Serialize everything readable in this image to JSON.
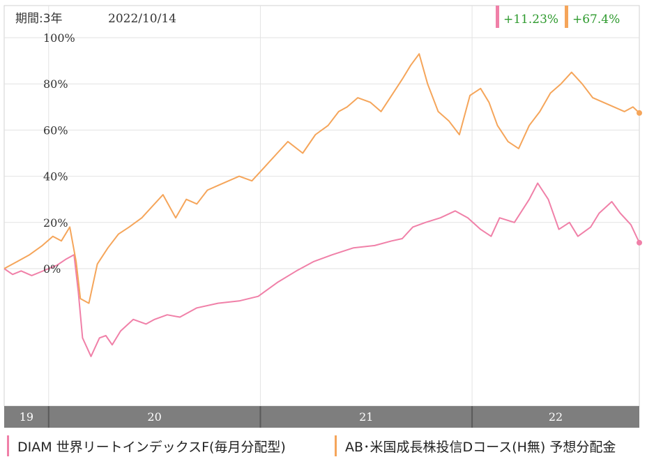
{
  "header": {
    "period_label": "期間:3年",
    "date_label": "2022/10/14"
  },
  "legend": [
    {
      "name": "DIAM 世界リートインデックスF(毎月分配型)",
      "color": "#f080a8",
      "change": "+11.23%"
    },
    {
      "name": "AB･米国成長株投信Dコース(H無) 予想分配金",
      "color": "#f5a55a",
      "change": "+67.4%"
    }
  ],
  "colors": {
    "change_text": "#2e9a2e",
    "grid": "#e2e2e2",
    "axis_band": "#7e7e7e",
    "axis_text": "#ffffff"
  },
  "chart_data": {
    "type": "line",
    "x_unit": "year",
    "xlim": [
      2019.79,
      2022.79
    ],
    "ylim": [
      -60,
      105
    ],
    "y_ticks": [
      0,
      20,
      40,
      60,
      80,
      100
    ],
    "y_tick_labels": [
      "0%",
      "20%",
      "40%",
      "60%",
      "80%",
      "100%"
    ],
    "x_tick_labels": [
      "19",
      "20",
      "21",
      "22"
    ],
    "x_year_boundaries": [
      2020,
      2021,
      2022
    ],
    "grid": true,
    "legend_position": "bottom",
    "series": [
      {
        "name": "DIAM 世界リートインデックスF(毎月分配型)",
        "color": "#f080a8",
        "x": [
          2019.79,
          2019.83,
          2019.87,
          2019.92,
          2019.96,
          2020.0,
          2020.04,
          2020.08,
          2020.12,
          2020.14,
          2020.16,
          2020.2,
          2020.24,
          2020.27,
          2020.3,
          2020.34,
          2020.4,
          2020.46,
          2020.5,
          2020.56,
          2020.62,
          2020.7,
          2020.8,
          2020.9,
          2020.99,
          2021.08,
          2021.17,
          2021.25,
          2021.34,
          2021.44,
          2021.54,
          2021.62,
          2021.67,
          2021.72,
          2021.78,
          2021.85,
          2021.92,
          2021.98,
          2022.04,
          2022.09,
          2022.13,
          2022.2,
          2022.27,
          2022.31,
          2022.36,
          2022.41,
          2022.46,
          2022.5,
          2022.56,
          2022.6,
          2022.66,
          2022.7,
          2022.75,
          2022.79
        ],
        "y": [
          0,
          -2.5,
          -1,
          -3,
          -1.5,
          0,
          1.5,
          4,
          6,
          -10,
          -30,
          -38,
          -30,
          -29,
          -33,
          -27,
          -22,
          -24,
          -22,
          -20,
          -21,
          -17,
          -15,
          -14,
          -12,
          -6,
          -1,
          3,
          6,
          9,
          10,
          12,
          13,
          18,
          20,
          22,
          25,
          22,
          17,
          14,
          22,
          20,
          30,
          37,
          30,
          17,
          20,
          14,
          18,
          24,
          29,
          24,
          19,
          11.23
        ]
      },
      {
        "name": "AB･米国成長株投信Dコース(H無) 予想分配金",
        "color": "#f5a55a",
        "x": [
          2019.79,
          2019.85,
          2019.91,
          2019.97,
          2020.02,
          2020.06,
          2020.1,
          2020.13,
          2020.15,
          2020.19,
          2020.23,
          2020.28,
          2020.33,
          2020.38,
          2020.44,
          2020.49,
          2020.54,
          2020.6,
          2020.65,
          2020.7,
          2020.75,
          2020.8,
          2020.85,
          2020.9,
          2020.96,
          2021.02,
          2021.08,
          2021.13,
          2021.2,
          2021.26,
          2021.32,
          2021.37,
          2021.41,
          2021.46,
          2021.52,
          2021.57,
          2021.62,
          2021.67,
          2021.71,
          2021.75,
          2021.79,
          2021.84,
          2021.89,
          2021.94,
          2021.99,
          2022.04,
          2022.08,
          2022.12,
          2022.17,
          2022.22,
          2022.27,
          2022.32,
          2022.37,
          2022.42,
          2022.47,
          2022.52,
          2022.57,
          2022.62,
          2022.67,
          2022.72,
          2022.76,
          2022.79
        ],
        "y": [
          0,
          3,
          6,
          10,
          14,
          12,
          18,
          3,
          -13,
          -15,
          2,
          9,
          15,
          18,
          22,
          27,
          32,
          22,
          30,
          28,
          34,
          36,
          38,
          40,
          38,
          44,
          50,
          55,
          50,
          58,
          62,
          68,
          70,
          74,
          72,
          68,
          75,
          82,
          88,
          93,
          80,
          68,
          64,
          58,
          75,
          78,
          72,
          62,
          55,
          52,
          62,
          68,
          76,
          80,
          85,
          80,
          74,
          72,
          70,
          68,
          70,
          67.4
        ]
      }
    ]
  }
}
